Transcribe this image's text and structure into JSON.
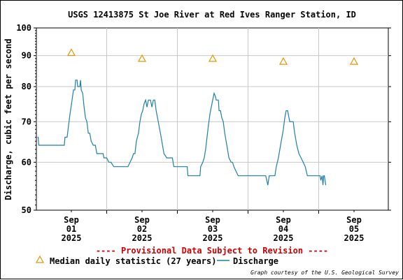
{
  "chart_data": {
    "type": "line",
    "title": "USGS 12413875 St Joe River at Red Ives Ranger Station, ID",
    "ylabel": "Discharge, cubic feet per second",
    "xlabel": "",
    "y_scale": "log",
    "ylim": [
      50,
      100
    ],
    "y_ticks": [
      50,
      60,
      70,
      80,
      90,
      100
    ],
    "x_range_days": [
      0,
      4.5
    ],
    "x_ticks": [
      {
        "day": 0,
        "month": "Sep",
        "date": "01",
        "year": "2025"
      },
      {
        "day": 1,
        "month": "Sep",
        "date": "02",
        "year": "2025"
      },
      {
        "day": 2,
        "month": "Sep",
        "date": "03",
        "year": "2025"
      },
      {
        "day": 3,
        "month": "Sep",
        "date": "04",
        "year": "2025"
      },
      {
        "day": 4,
        "month": "Sep",
        "date": "05",
        "year": "2025"
      }
    ],
    "grid": true,
    "series": [
      {
        "name": "Median daily statistic (27 years)",
        "marker": "triangle",
        "color": "#e69500",
        "points": [
          {
            "day": 0,
            "value": 91
          },
          {
            "day": 1,
            "value": 89
          },
          {
            "day": 2,
            "value": 89
          },
          {
            "day": 3,
            "value": 88
          },
          {
            "day": 4,
            "value": 88
          }
        ]
      },
      {
        "name": "Discharge",
        "color": "#1e7fa8",
        "points": [
          [
            -0.48,
            66
          ],
          [
            -0.47,
            66
          ],
          [
            -0.46,
            64
          ],
          [
            -0.1,
            64
          ],
          [
            -0.09,
            66
          ],
          [
            -0.06,
            66
          ],
          [
            -0.02,
            72
          ],
          [
            0.01,
            76
          ],
          [
            0.03,
            79
          ],
          [
            0.05,
            79
          ],
          [
            0.06,
            82
          ],
          [
            0.08,
            82
          ],
          [
            0.09,
            80
          ],
          [
            0.12,
            80
          ],
          [
            0.13,
            82
          ],
          [
            0.14,
            79
          ],
          [
            0.16,
            78
          ],
          [
            0.18,
            74
          ],
          [
            0.2,
            71
          ],
          [
            0.22,
            70
          ],
          [
            0.24,
            67
          ],
          [
            0.26,
            67
          ],
          [
            0.28,
            65
          ],
          [
            0.31,
            64
          ],
          [
            0.34,
            64
          ],
          [
            0.36,
            62
          ],
          [
            0.4,
            62
          ],
          [
            0.45,
            62
          ],
          [
            0.46,
            61
          ],
          [
            0.5,
            61
          ],
          [
            0.53,
            60
          ],
          [
            0.56,
            60
          ],
          [
            0.6,
            59
          ],
          [
            0.8,
            59
          ],
          [
            0.86,
            61
          ],
          [
            0.88,
            62
          ],
          [
            0.9,
            62
          ],
          [
            0.92,
            65
          ],
          [
            0.95,
            67
          ],
          [
            0.97,
            70
          ],
          [
            0.99,
            72
          ],
          [
            1.01,
            73
          ],
          [
            1.03,
            75
          ],
          [
            1.05,
            76
          ],
          [
            1.07,
            74
          ],
          [
            1.09,
            76
          ],
          [
            1.12,
            76
          ],
          [
            1.14,
            74
          ],
          [
            1.16,
            76
          ],
          [
            1.18,
            76
          ],
          [
            1.2,
            73
          ],
          [
            1.23,
            70
          ],
          [
            1.26,
            67
          ],
          [
            1.28,
            65
          ],
          [
            1.31,
            62
          ],
          [
            1.35,
            61
          ],
          [
            1.43,
            61
          ],
          [
            1.45,
            59
          ],
          [
            1.55,
            59
          ],
          [
            1.6,
            59
          ],
          [
            1.64,
            59
          ],
          [
            1.65,
            57
          ],
          [
            1.82,
            57
          ],
          [
            1.83,
            59
          ],
          [
            1.86,
            60
          ],
          [
            1.88,
            61
          ],
          [
            1.9,
            63
          ],
          [
            1.92,
            66
          ],
          [
            1.94,
            69
          ],
          [
            1.96,
            72
          ],
          [
            1.98,
            74
          ],
          [
            2.0,
            76
          ],
          [
            2.02,
            78
          ],
          [
            2.04,
            77
          ],
          [
            2.05,
            76
          ],
          [
            2.06,
            76
          ],
          [
            2.08,
            76
          ],
          [
            2.09,
            73
          ],
          [
            2.11,
            73
          ],
          [
            2.13,
            71
          ],
          [
            2.15,
            70
          ],
          [
            2.17,
            67
          ],
          [
            2.2,
            64
          ],
          [
            2.23,
            61
          ],
          [
            2.26,
            60
          ],
          [
            2.28,
            60
          ],
          [
            2.3,
            59
          ],
          [
            2.33,
            58
          ],
          [
            2.36,
            57
          ],
          [
            2.4,
            57
          ],
          [
            2.45,
            57
          ],
          [
            2.5,
            57
          ],
          [
            2.6,
            57
          ],
          [
            2.72,
            57
          ],
          [
            2.75,
            57
          ],
          [
            2.78,
            55
          ],
          [
            2.8,
            57
          ],
          [
            2.85,
            57
          ],
          [
            2.88,
            57
          ],
          [
            2.9,
            59
          ],
          [
            2.93,
            61
          ],
          [
            2.96,
            64
          ],
          [
            2.98,
            66
          ],
          [
            3.0,
            68
          ],
          [
            3.02,
            71
          ],
          [
            3.04,
            73
          ],
          [
            3.06,
            73
          ],
          [
            3.08,
            71
          ],
          [
            3.09,
            70
          ],
          [
            3.11,
            70
          ],
          [
            3.14,
            70
          ],
          [
            3.16,
            67
          ],
          [
            3.19,
            64
          ],
          [
            3.22,
            62
          ],
          [
            3.25,
            61
          ],
          [
            3.28,
            60
          ],
          [
            3.31,
            59
          ],
          [
            3.34,
            57
          ],
          [
            3.38,
            57
          ],
          [
            3.45,
            57
          ],
          [
            3.5,
            57
          ],
          [
            3.52,
            57
          ],
          [
            3.53,
            56
          ],
          [
            3.55,
            57
          ],
          [
            3.56,
            55
          ],
          [
            3.57,
            57
          ],
          [
            3.58,
            57
          ],
          [
            3.6,
            55
          ]
        ]
      }
    ],
    "legend": {
      "placement": "bottom",
      "entries": [
        {
          "label": "Median daily statistic (27 years)",
          "kind": "triangle",
          "color": "#e69500"
        },
        {
          "label": "Discharge",
          "kind": "line",
          "color": "#1e7fa8"
        }
      ]
    },
    "notice": "---- Provisional Data Subject to Revision ----",
    "credit": "Graph courtesy of the U.S. Geological Survey"
  }
}
